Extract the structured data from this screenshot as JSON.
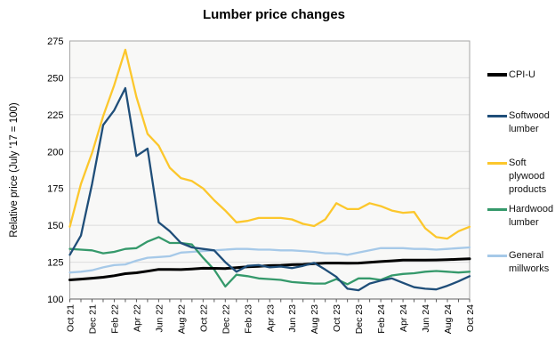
{
  "title": "Lumber price changes",
  "y_axis": {
    "title": "Relative price (July '17 = 100)"
  },
  "legend": {
    "items": [
      {
        "label": "CPI-U",
        "color": "#000000"
      },
      {
        "label": "Softwood lumber",
        "color": "#1f4e79"
      },
      {
        "label": "Soft plywood products",
        "color": "#fcc72c"
      },
      {
        "label": "Hardwood lumber",
        "color": "#35996b"
      },
      {
        "label": "General millworks",
        "color": "#a6c9e8"
      }
    ]
  },
  "chart_data": {
    "type": "line",
    "title": "Lumber price changes",
    "ylabel": "Relative price (July '17 = 100)",
    "ylim": [
      100,
      275
    ],
    "y_ticks": [
      275,
      250,
      225,
      200,
      175,
      150,
      125,
      100
    ],
    "grid": "horizontal",
    "legend_position": "right",
    "plot_bg": "#f8f8f7",
    "x": [
      "Oct 21",
      "Nov 21",
      "Dec 21",
      "Jan 22",
      "Feb 22",
      "Mar 22",
      "Apr 22",
      "May 22",
      "Jun 22",
      "Jul 22",
      "Aug 22",
      "Sep 22",
      "Oct 22",
      "Nov 22",
      "Dec 22",
      "Jan 23",
      "Feb 23",
      "Mar 23",
      "Apr 23",
      "May 23",
      "Jun 23",
      "Jul 23",
      "Aug 23",
      "Sep 23",
      "Oct 23",
      "Nov 23",
      "Dec 23",
      "Jan 24",
      "Feb 24",
      "Mar 24",
      "Apr 24",
      "May 24",
      "Jun 24",
      "Jul 24",
      "Aug 24",
      "Sep 24",
      "Oct 24"
    ],
    "x_tick_labels_shown": [
      "Oct 21",
      "Dec 21",
      "Feb 22",
      "Apr 22",
      "Jun 22",
      "Aug 22",
      "Oct 22",
      "Dec 22",
      "Feb 23",
      "Apr 23",
      "Jun 23",
      "Aug 23",
      "Oct 23",
      "Dec 23",
      "Feb 24",
      "Apr 24",
      "Jun 24",
      "Aug 24",
      "Oct 24"
    ],
    "series": [
      {
        "name": "CPI-U",
        "color": "#000000",
        "width": 3,
        "values": [
          113,
          113.5,
          114.1,
          114.8,
          115.8,
          117.2,
          117.8,
          118.9,
          120.1,
          120.1,
          120,
          120.4,
          120.9,
          120.8,
          120.7,
          121.3,
          121.9,
          122.2,
          122.7,
          122.9,
          123.3,
          123.5,
          124,
          124.4,
          124.4,
          124.3,
          124.4,
          124.9,
          125.4,
          125.9,
          126.4,
          126.4,
          126.4,
          126.5,
          126.7,
          127,
          127.3
        ]
      },
      {
        "name": "Softwood lumber",
        "color": "#1f4e79",
        "width": 2.3,
        "values": [
          130,
          143,
          178,
          218,
          228,
          243,
          197,
          202,
          152,
          146,
          138,
          135,
          134,
          133,
          125,
          118.5,
          122.5,
          123,
          121.5,
          122,
          121,
          122.5,
          124.5,
          120,
          115,
          107,
          106,
          110.5,
          112.5,
          114,
          111,
          108,
          107,
          106.5,
          109,
          112,
          115.5
        ]
      },
      {
        "name": "Soft plywood products",
        "color": "#fcc72c",
        "width": 2.3,
        "values": [
          149,
          178,
          199,
          224,
          245,
          269,
          237,
          212,
          204,
          189,
          182,
          180,
          175,
          167,
          160,
          152,
          153,
          155,
          155,
          155,
          154,
          151,
          149.5,
          154,
          165,
          161,
          161,
          165,
          163,
          160,
          158.5,
          159,
          148,
          142,
          141,
          146,
          149
        ]
      },
      {
        "name": "Hardwood lumber",
        "color": "#35996b",
        "width": 2.3,
        "values": [
          134,
          133.5,
          133,
          131,
          132,
          134,
          134.5,
          139,
          142,
          138,
          138,
          137,
          128,
          120,
          108.5,
          116.5,
          115.5,
          114,
          113.5,
          113,
          111.5,
          111,
          110.5,
          110.5,
          113.5,
          110,
          114,
          114,
          113,
          116,
          117,
          117.5,
          118.5,
          119,
          118.5,
          118,
          118.5
        ]
      },
      {
        "name": "General millworks",
        "color": "#a6c9e8",
        "width": 2.3,
        "values": [
          118,
          118.5,
          119.5,
          121.5,
          123,
          123.5,
          126,
          128,
          128.5,
          129,
          131.5,
          132,
          132.5,
          133,
          133.5,
          134,
          134,
          133.5,
          133.5,
          133,
          133,
          132.5,
          132,
          131,
          131,
          130,
          131.5,
          133,
          134.5,
          134.5,
          134.5,
          134,
          134,
          133.5,
          134,
          134.5,
          135
        ]
      }
    ]
  }
}
